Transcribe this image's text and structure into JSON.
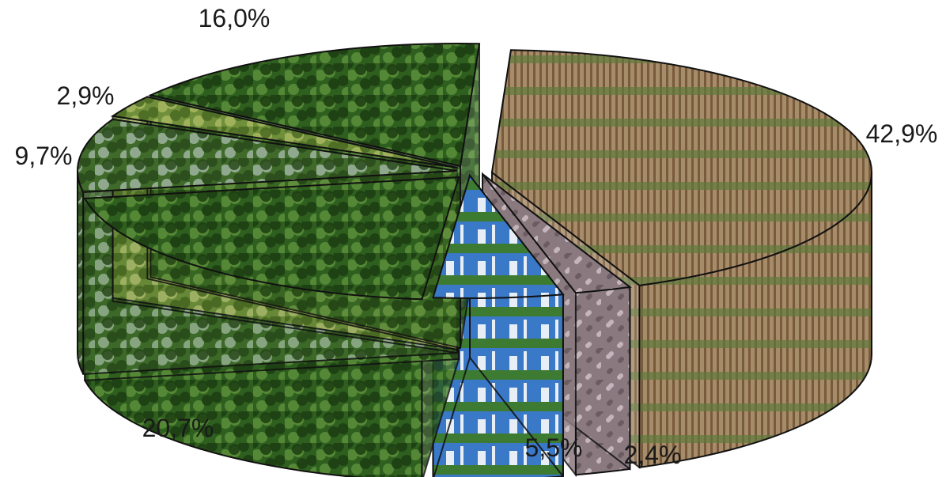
{
  "chart_data": {
    "type": "pie",
    "title": "",
    "slices": [
      {
        "label": "42,9%",
        "value": 42.9,
        "texture": "eucalyptus-plantation"
      },
      {
        "label": "2,4%",
        "value": 2.4,
        "texture": "wood-chips"
      },
      {
        "label": "5,5%",
        "value": 5.5,
        "texture": "pulp-mill"
      },
      {
        "label": "20,7%",
        "value": 20.7,
        "texture": "native-forest"
      },
      {
        "label": "9,7%",
        "value": 9.7,
        "texture": "wetland"
      },
      {
        "label": "2,9%",
        "value": 2.9,
        "texture": "grassland"
      },
      {
        "label": "16,0%",
        "value": 16.0,
        "texture": "native-forest"
      }
    ],
    "legend": "none",
    "grid": false,
    "style": "3d-exploded-pie"
  },
  "colors": {
    "eucalyptus-plantation": [
      "#7a5a3c",
      "#c9b58f",
      "#5f7a3a"
    ],
    "wood-chips": [
      "#8a7a80",
      "#c4b4bc",
      "#6b5c63"
    ],
    "pulp-mill": [
      "#3a78c8",
      "#e8eef5",
      "#3d7a32"
    ],
    "native-forest": [
      "#2f5f1f",
      "#5c8f3a",
      "#1c3d12"
    ],
    "wetland": [
      "#3f6a2a",
      "#9fb4a0",
      "#2a4a1c"
    ],
    "grassland": [
      "#6f8f3a",
      "#a8b860",
      "#4a6a22"
    ]
  }
}
